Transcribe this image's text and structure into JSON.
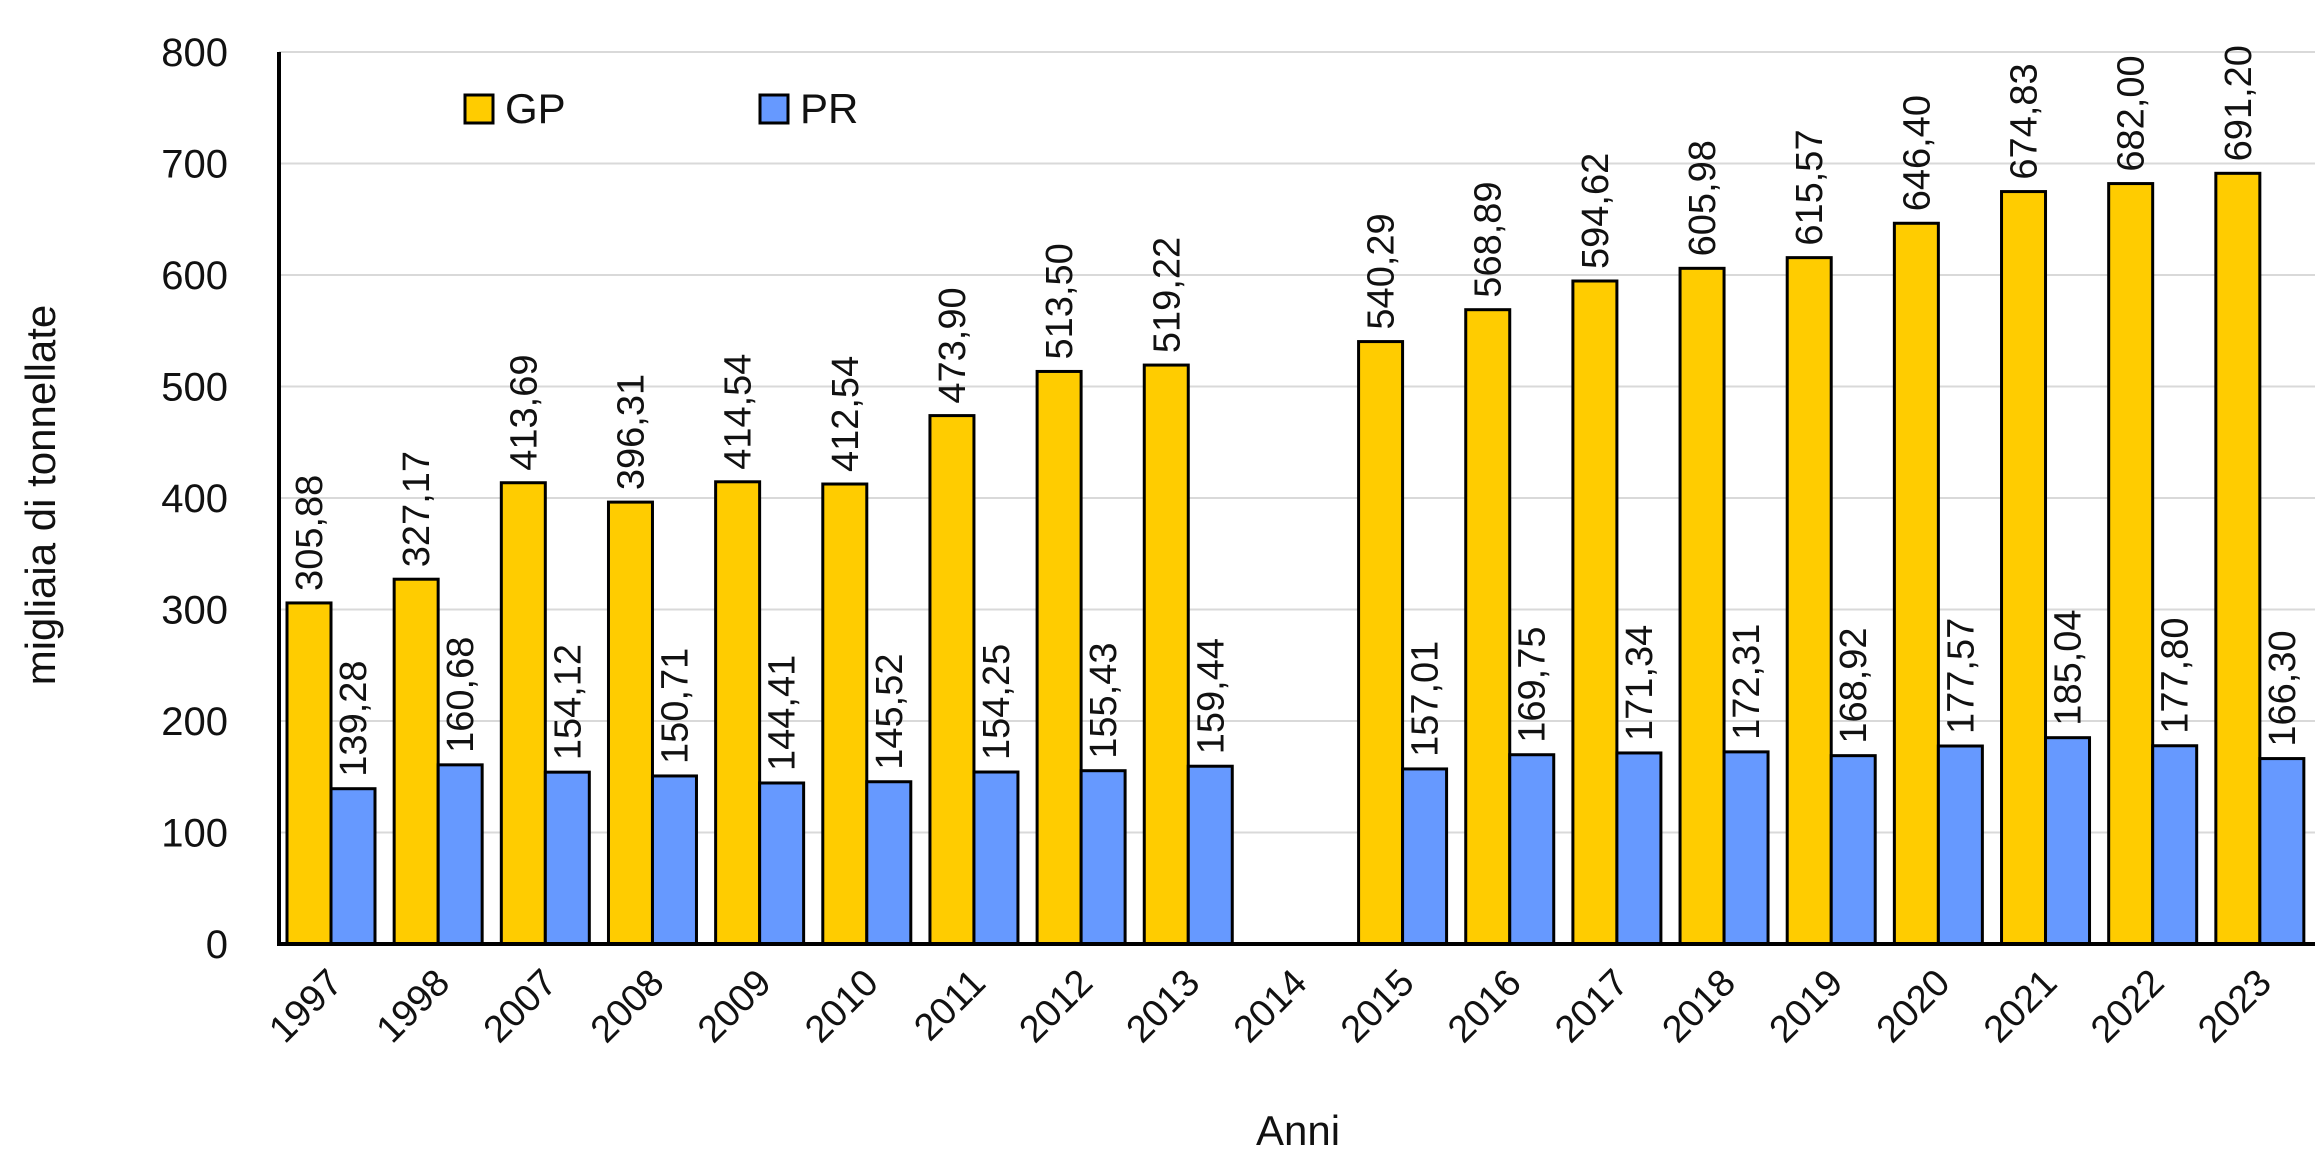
{
  "chart_data": {
    "type": "bar",
    "xlabel": "Anni",
    "ylabel": "migliaia di tonnellate",
    "ylim": [
      0,
      800
    ],
    "yticks": [
      "0",
      "100",
      "200",
      "300",
      "400",
      "500",
      "600",
      "700",
      "800"
    ],
    "grid": true,
    "legend_placement": "top-left",
    "categories": [
      "1997",
      "1998",
      "2007",
      "2008",
      "2009",
      "2010",
      "2011",
      "2012",
      "2013",
      "2014",
      "2015",
      "2016",
      "2017",
      "2018",
      "2019",
      "2020",
      "2021",
      "2022",
      "2023"
    ],
    "series": [
      {
        "name": "GP",
        "color": "#FFCC00",
        "values": [
          305.88,
          327.17,
          413.69,
          396.31,
          414.54,
          412.54,
          473.9,
          513.5,
          519.22,
          null,
          540.29,
          568.89,
          594.62,
          605.98,
          615.57,
          646.4,
          674.83,
          682.0,
          691.2
        ],
        "labels": [
          "305,88",
          "327,17",
          "413,69",
          "396,31",
          "414,54",
          "412,54",
          "473,90",
          "513,50",
          "519,22",
          "",
          "540,29",
          "568,89",
          "594,62",
          "605,98",
          "615,57",
          "646,40",
          "674,83",
          "682,00",
          "691,20"
        ]
      },
      {
        "name": "PR",
        "color": "#6699FF",
        "values": [
          139.28,
          160.68,
          154.12,
          150.71,
          144.41,
          145.52,
          154.25,
          155.43,
          159.44,
          null,
          157.01,
          169.75,
          171.34,
          172.31,
          168.92,
          177.57,
          185.04,
          177.8,
          166.3
        ],
        "labels": [
          "139,28",
          "160,68",
          "154,12",
          "150,71",
          "144,41",
          "145,52",
          "154,25",
          "155,43",
          "159,44",
          "",
          "157,01",
          "169,75",
          "171,34",
          "172,31",
          "168,92",
          "177,57",
          "185,04",
          "177,80",
          "166,30"
        ]
      }
    ]
  }
}
